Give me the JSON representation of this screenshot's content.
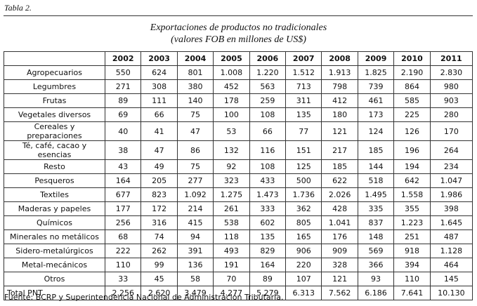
{
  "header": {
    "label": "Tabla 2.",
    "title": "Exportaciones de productos no tradicionales",
    "subtitle": "(valores FOB en millones de US$)"
  },
  "table": {
    "columns": [
      "2002",
      "2003",
      "2004",
      "2005",
      "2006",
      "2007",
      "2008",
      "2009",
      "2010",
      "2011"
    ],
    "rows": [
      [
        "Agropecuarios",
        "550",
        "624",
        "801",
        "1.008",
        "1.220",
        "1.512",
        "1.913",
        "1.825",
        "2.190",
        "2.830"
      ],
      [
        "Legumbres",
        "271",
        "308",
        "380",
        "452",
        "563",
        "713",
        "798",
        "739",
        "864",
        "980"
      ],
      [
        "Frutas",
        "89",
        "111",
        "140",
        "178",
        "259",
        "311",
        "412",
        "461",
        "585",
        "903"
      ],
      [
        "Vegetales diversos",
        "69",
        "66",
        "75",
        "100",
        "108",
        "135",
        "180",
        "173",
        "225",
        "280"
      ],
      [
        "Cereales y preparaciones",
        "40",
        "41",
        "47",
        "53",
        "66",
        "77",
        "121",
        "124",
        "126",
        "170"
      ],
      [
        "Té, café, cacao y esencias",
        "38",
        "47",
        "86",
        "132",
        "116",
        "151",
        "217",
        "185",
        "196",
        "264"
      ],
      [
        "Resto",
        "43",
        "49",
        "75",
        "92",
        "108",
        "125",
        "185",
        "144",
        "194",
        "234"
      ],
      [
        "Pesqueros",
        "164",
        "205",
        "277",
        "323",
        "433",
        "500",
        "622",
        "518",
        "642",
        "1.047"
      ],
      [
        "Textiles",
        "677",
        "823",
        "1.092",
        "1.275",
        "1.473",
        "1.736",
        "2.026",
        "1.495",
        "1.558",
        "1.986"
      ],
      [
        "Maderas y papeles",
        "177",
        "172",
        "214",
        "261",
        "333",
        "362",
        "428",
        "335",
        "355",
        "398"
      ],
      [
        "Químicos",
        "256",
        "316",
        "415",
        "538",
        "602",
        "805",
        "1.041",
        "837",
        "1.223",
        "1.645"
      ],
      [
        "Minerales no metálicos",
        "68",
        "74",
        "94",
        "118",
        "135",
        "165",
        "176",
        "148",
        "251",
        "487"
      ],
      [
        "Sidero-metalúrgicos",
        "222",
        "262",
        "391",
        "493",
        "829",
        "906",
        "909",
        "569",
        "918",
        "1.128"
      ],
      [
        "Metal-mecánicos",
        "110",
        "99",
        "136",
        "191",
        "164",
        "220",
        "328",
        "366",
        "394",
        "464"
      ],
      [
        "Otros",
        "33",
        "45",
        "58",
        "70",
        "89",
        "107",
        "121",
        "93",
        "110",
        "145"
      ],
      [
        "Total PNT",
        "2.256",
        "2.620",
        "3.479",
        "4.277",
        "5.279",
        "6.313",
        "7.562",
        "6.186",
        "7.641",
        "10.130"
      ]
    ]
  },
  "footer": {
    "source": "Fuente: BCRP y Superintendencia Nacional de Administración Tributaria."
  }
}
